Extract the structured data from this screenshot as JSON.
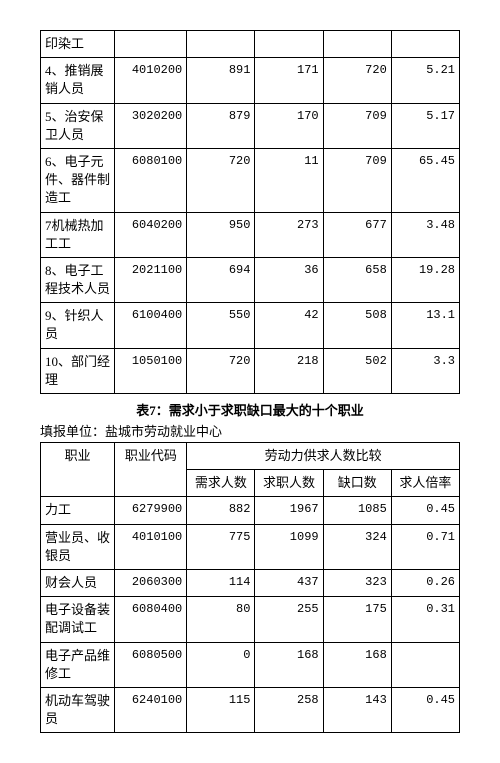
{
  "table1": {
    "rows": [
      {
        "occ": "印染工",
        "code": "",
        "a": "",
        "b": "",
        "c": "",
        "d": ""
      },
      {
        "occ": "4、推销展销人员",
        "code": "4010200",
        "a": "891",
        "b": "171",
        "c": "720",
        "d": "5.21"
      },
      {
        "occ": "5、治安保卫人员",
        "code": "3020200",
        "a": "879",
        "b": "170",
        "c": "709",
        "d": "5.17"
      },
      {
        "occ": "6、电子元件、器件制造工",
        "code": "6080100",
        "a": "720",
        "b": "11",
        "c": "709",
        "d": "65.45"
      },
      {
        "occ": "7机械热加工工",
        "code": "6040200",
        "a": "950",
        "b": "273",
        "c": "677",
        "d": "3.48"
      },
      {
        "occ": "8、电子工程技术人员",
        "code": "2021100",
        "a": "694",
        "b": "36",
        "c": "658",
        "d": "19.28"
      },
      {
        "occ": "9、针织人员",
        "code": "6100400",
        "a": "550",
        "b": "42",
        "c": "508",
        "d": "13.1"
      },
      {
        "occ": "10、部门经理",
        "code": "1050100",
        "a": "720",
        "b": "218",
        "c": "502",
        "d": "3.3"
      }
    ]
  },
  "caption": "表7：需求小于求职缺口最大的十个职业",
  "unit_label": "填报单位：盐城市劳动就业中心",
  "table2": {
    "headers": {
      "occ": "职业",
      "code": "职业代码",
      "group": "劳动力供求人数比较",
      "a": "需求人数",
      "b": "求职人数",
      "c": "缺口数",
      "d": "求人倍率"
    },
    "rows": [
      {
        "occ": "力工",
        "code": "6279900",
        "a": "882",
        "b": "1967",
        "c": "1085",
        "d": "0.45"
      },
      {
        "occ": "营业员、收银员",
        "code": "4010100",
        "a": "775",
        "b": "1099",
        "c": "324",
        "d": "0.71"
      },
      {
        "occ": "财会人员",
        "code": "2060300",
        "a": "114",
        "b": "437",
        "c": "323",
        "d": "0.26"
      },
      {
        "occ": "电子设备装配调试工",
        "code": "6080400",
        "a": "80",
        "b": "255",
        "c": "175",
        "d": "0.31"
      },
      {
        "occ": "电子产品维修工",
        "code": "6080500",
        "a": "0",
        "b": "168",
        "c": "168",
        "d": ""
      },
      {
        "occ": "机动车驾驶员",
        "code": "6240100",
        "a": "115",
        "b": "258",
        "c": "143",
        "d": "0.45"
      }
    ]
  }
}
